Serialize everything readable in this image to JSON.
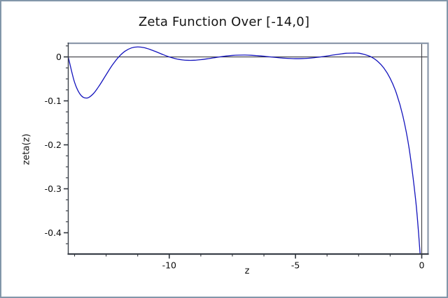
{
  "figure": {
    "background": "#ffffff",
    "border_color": "#8296a9"
  },
  "chart_data": {
    "type": "line",
    "title": "Zeta Function Over [-14,0]",
    "xlabel": "z",
    "ylabel": "zeta(z)",
    "xlim": [
      -14,
      0.25
    ],
    "ylim": [
      -0.4484,
      0.031
    ],
    "grid": false,
    "legend": null,
    "axes_lines": {
      "vertical_at_x": 0,
      "horizontal_at_y": 0
    },
    "x_major_ticks": [
      -10,
      -5,
      0
    ],
    "x_major_tick_labels": [
      "-10",
      "-5",
      "0"
    ],
    "x_minor_ticks": [
      -13.75,
      -12.5,
      -11.25,
      -8.75,
      -7.5,
      -6.25,
      -3.75,
      -2.5,
      -1.25
    ],
    "y_major_ticks": [
      0,
      -0.1,
      -0.2,
      -0.3,
      -0.4
    ],
    "y_major_tick_labels": [
      "0",
      "-0.1",
      "-0.2",
      "-0.3",
      "-0.4"
    ],
    "y_minor_ticks": [
      0.025,
      -0.025,
      -0.05,
      -0.075,
      -0.125,
      -0.15,
      -0.175,
      -0.225,
      -0.25,
      -0.275,
      -0.325,
      -0.35,
      -0.375,
      -0.425
    ],
    "colors": {
      "curve": "#1414bd",
      "spine_dark": "#3a4049",
      "spine_light": "#8c99ab",
      "zero_axis": "#3c3c42",
      "tick": "#2f343c",
      "tick_label": "#0d0d0d"
    },
    "series": [
      {
        "name": "zeta(z)",
        "color": "#1414bd",
        "x": [
          -14,
          -13.75,
          -13.5,
          -13.25,
          -13,
          -12.75,
          -12.5,
          -12.25,
          -12,
          -11.75,
          -11.5,
          -11.25,
          -11,
          -10.75,
          -10.5,
          -10.25,
          -10,
          -9.75,
          -9.5,
          -9.25,
          -9,
          -8.75,
          -8.5,
          -8.25,
          -8,
          -7.75,
          -7.5,
          -7.25,
          -7,
          -6.75,
          -6.5,
          -6.25,
          -6,
          -5.75,
          -5.5,
          -5.25,
          -5,
          -4.75,
          -4.5,
          -4.25,
          -4,
          -3.75,
          -3.5,
          -3.25,
          -3,
          -2.75,
          -2.5,
          -2.25,
          -2,
          -1.75,
          -1.5,
          -1.25,
          -1,
          -0.75,
          -0.5,
          -0.25,
          -0.125,
          0
        ],
        "y": [
          0,
          -0.0578,
          -0.0872,
          -0.0935,
          -0.0833,
          -0.0636,
          -0.0406,
          -0.0183,
          0,
          0.013,
          0.0204,
          0.0227,
          0.0211,
          0.0168,
          0.0112,
          0.0053,
          0,
          -0.0041,
          -0.0067,
          -0.0078,
          -0.0076,
          -0.0063,
          -0.0044,
          -0.0022,
          0,
          0.0019,
          0.0033,
          0.004,
          0.0042,
          0.0037,
          0.0027,
          0.0015,
          0,
          -0.0014,
          -0.0027,
          -0.0035,
          -0.004,
          -0.0038,
          -0.0031,
          -0.0018,
          0,
          0.0021,
          0.0044,
          0.0064,
          0.0083,
          0.0086,
          0.0085,
          0.0052,
          0,
          -0.0099,
          -0.0254,
          -0.0489,
          -0.0833,
          -0.1337,
          -0.2079,
          -0.3204,
          -0.4008,
          -0.5
        ]
      }
    ]
  }
}
